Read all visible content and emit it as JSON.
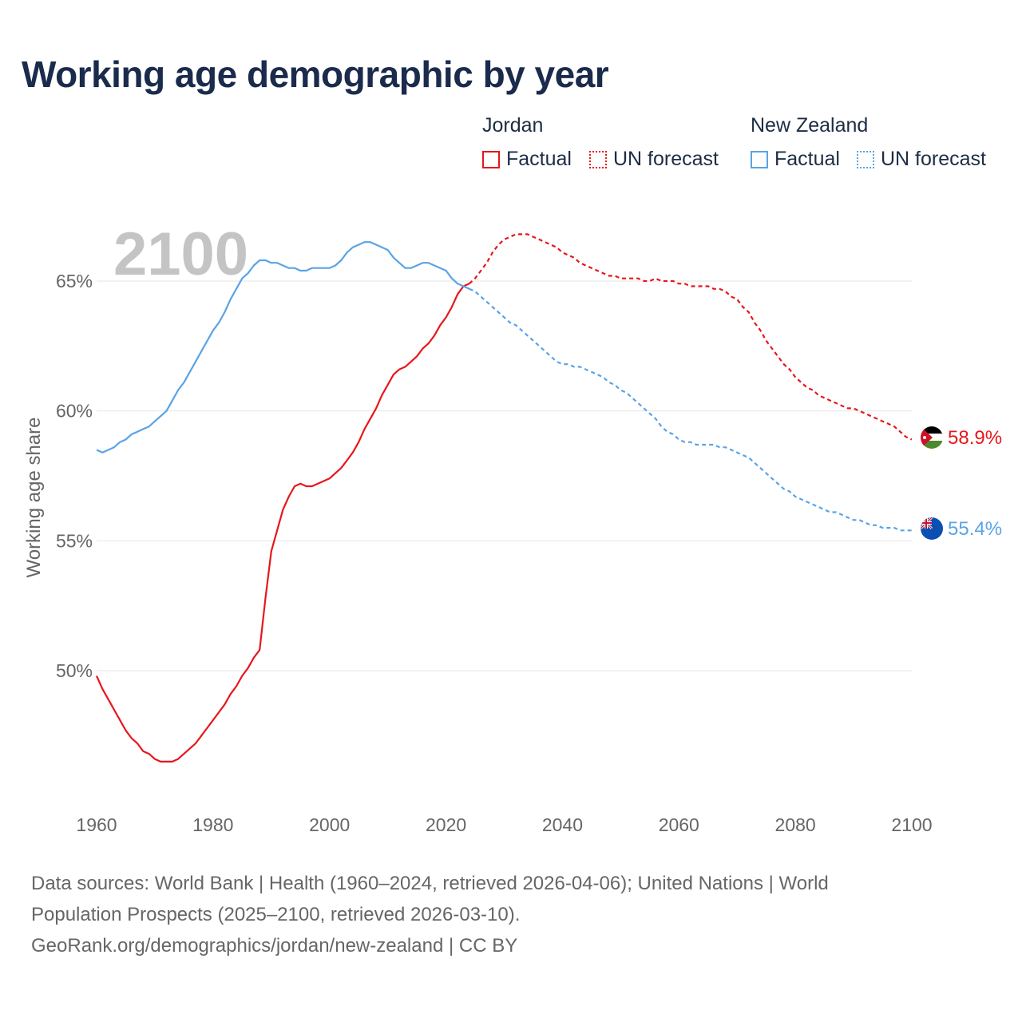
{
  "title": "Working age demographic by year",
  "legend": {
    "groups": [
      {
        "country": "Jordan",
        "factual_label": "Factual",
        "forecast_label": "UN forecast",
        "color": "#e8161b"
      },
      {
        "country": "New Zealand",
        "factual_label": "Factual",
        "forecast_label": "UN forecast",
        "color": "#5aa3e6"
      }
    ]
  },
  "year_watermark": "2100",
  "end_labels": {
    "jordan": "58.9%",
    "new_zealand": "55.4%"
  },
  "footer": {
    "line1": "Data sources: World Bank | Health (1960–2024, retrieved 2026-04-06); United Nations | World",
    "line2": "Population Prospects (2025–2100, retrieved 2026-03-10).",
    "line3": "GeoRank.org/demographics/jordan/new-zealand | CC BY"
  },
  "chart_data": {
    "type": "line",
    "title": "Working age demographic by year",
    "xlabel": "",
    "ylabel": "Working age share",
    "xlim": [
      1960,
      2100
    ],
    "ylim": [
      45,
      68
    ],
    "yticks": [
      50,
      55,
      60,
      65
    ],
    "ytick_labels": [
      "50%",
      "55%",
      "60%",
      "65%"
    ],
    "xticks": [
      1960,
      1980,
      2000,
      2020,
      2040,
      2060,
      2080,
      2100
    ],
    "xtick_labels": [
      "1960",
      "1980",
      "2000",
      "2020",
      "2040",
      "2060",
      "2080",
      "2100"
    ],
    "grid": true,
    "factual_until": 2024,
    "series": [
      {
        "name": "Jordan",
        "color": "#e8161b",
        "points": [
          [
            1960,
            49.8
          ],
          [
            1961,
            49.3
          ],
          [
            1962,
            48.9
          ],
          [
            1963,
            48.5
          ],
          [
            1964,
            48.1
          ],
          [
            1965,
            47.7
          ],
          [
            1966,
            47.4
          ],
          [
            1967,
            47.2
          ],
          [
            1968,
            46.9
          ],
          [
            1969,
            46.8
          ],
          [
            1970,
            46.6
          ],
          [
            1971,
            46.5
          ],
          [
            1972,
            46.5
          ],
          [
            1973,
            46.5
          ],
          [
            1974,
            46.6
          ],
          [
            1975,
            46.8
          ],
          [
            1976,
            47.0
          ],
          [
            1977,
            47.2
          ],
          [
            1978,
            47.5
          ],
          [
            1979,
            47.8
          ],
          [
            1980,
            48.1
          ],
          [
            1981,
            48.4
          ],
          [
            1982,
            48.7
          ],
          [
            1983,
            49.1
          ],
          [
            1984,
            49.4
          ],
          [
            1985,
            49.8
          ],
          [
            1986,
            50.1
          ],
          [
            1987,
            50.5
          ],
          [
            1988,
            50.8
          ],
          [
            1989,
            52.8
          ],
          [
            1990,
            54.6
          ],
          [
            1991,
            55.4
          ],
          [
            1992,
            56.2
          ],
          [
            1993,
            56.7
          ],
          [
            1994,
            57.1
          ],
          [
            1995,
            57.2
          ],
          [
            1996,
            57.1
          ],
          [
            1997,
            57.1
          ],
          [
            1998,
            57.2
          ],
          [
            1999,
            57.3
          ],
          [
            2000,
            57.4
          ],
          [
            2001,
            57.6
          ],
          [
            2002,
            57.8
          ],
          [
            2003,
            58.1
          ],
          [
            2004,
            58.4
          ],
          [
            2005,
            58.8
          ],
          [
            2006,
            59.3
          ],
          [
            2007,
            59.7
          ],
          [
            2008,
            60.1
          ],
          [
            2009,
            60.6
          ],
          [
            2010,
            61.0
          ],
          [
            2011,
            61.4
          ],
          [
            2012,
            61.6
          ],
          [
            2013,
            61.7
          ],
          [
            2014,
            61.9
          ],
          [
            2015,
            62.1
          ],
          [
            2016,
            62.4
          ],
          [
            2017,
            62.6
          ],
          [
            2018,
            62.9
          ],
          [
            2019,
            63.3
          ],
          [
            2020,
            63.6
          ],
          [
            2021,
            64.0
          ],
          [
            2022,
            64.5
          ],
          [
            2023,
            64.8
          ],
          [
            2024,
            64.9
          ],
          [
            2025,
            65.1
          ],
          [
            2026,
            65.4
          ],
          [
            2027,
            65.7
          ],
          [
            2028,
            66.1
          ],
          [
            2029,
            66.4
          ],
          [
            2030,
            66.6
          ],
          [
            2031,
            66.7
          ],
          [
            2032,
            66.8
          ],
          [
            2033,
            66.8
          ],
          [
            2034,
            66.8
          ],
          [
            2035,
            66.7
          ],
          [
            2036,
            66.6
          ],
          [
            2037,
            66.5
          ],
          [
            2038,
            66.4
          ],
          [
            2039,
            66.3
          ],
          [
            2040,
            66.1
          ],
          [
            2041,
            66.0
          ],
          [
            2042,
            65.9
          ],
          [
            2043,
            65.7
          ],
          [
            2044,
            65.6
          ],
          [
            2045,
            65.5
          ],
          [
            2046,
            65.4
          ],
          [
            2047,
            65.3
          ],
          [
            2048,
            65.2
          ],
          [
            2049,
            65.2
          ],
          [
            2050,
            65.1
          ],
          [
            2051,
            65.1
          ],
          [
            2052,
            65.1
          ],
          [
            2053,
            65.1
          ],
          [
            2054,
            65.0
          ],
          [
            2055,
            65.0
          ],
          [
            2056,
            65.1
          ],
          [
            2057,
            65.0
          ],
          [
            2058,
            65.0
          ],
          [
            2059,
            65.0
          ],
          [
            2060,
            64.9
          ],
          [
            2061,
            64.9
          ],
          [
            2062,
            64.8
          ],
          [
            2063,
            64.8
          ],
          [
            2064,
            64.8
          ],
          [
            2065,
            64.8
          ],
          [
            2066,
            64.7
          ],
          [
            2067,
            64.7
          ],
          [
            2068,
            64.6
          ],
          [
            2069,
            64.4
          ],
          [
            2070,
            64.3
          ],
          [
            2071,
            64.0
          ],
          [
            2072,
            63.8
          ],
          [
            2073,
            63.4
          ],
          [
            2074,
            63.1
          ],
          [
            2075,
            62.7
          ],
          [
            2076,
            62.4
          ],
          [
            2077,
            62.1
          ],
          [
            2078,
            61.8
          ],
          [
            2079,
            61.6
          ],
          [
            2080,
            61.3
          ],
          [
            2081,
            61.1
          ],
          [
            2082,
            60.9
          ],
          [
            2083,
            60.8
          ],
          [
            2084,
            60.6
          ],
          [
            2085,
            60.5
          ],
          [
            2086,
            60.4
          ],
          [
            2087,
            60.3
          ],
          [
            2088,
            60.2
          ],
          [
            2089,
            60.1
          ],
          [
            2090,
            60.1
          ],
          [
            2091,
            60.0
          ],
          [
            2092,
            59.9
          ],
          [
            2093,
            59.8
          ],
          [
            2094,
            59.7
          ],
          [
            2095,
            59.6
          ],
          [
            2096,
            59.5
          ],
          [
            2097,
            59.4
          ],
          [
            2098,
            59.2
          ],
          [
            2099,
            59.0
          ],
          [
            2100,
            58.9
          ]
        ]
      },
      {
        "name": "New Zealand",
        "color": "#5aa3e6",
        "points": [
          [
            1960,
            58.5
          ],
          [
            1961,
            58.4
          ],
          [
            1962,
            58.5
          ],
          [
            1963,
            58.6
          ],
          [
            1964,
            58.8
          ],
          [
            1965,
            58.9
          ],
          [
            1966,
            59.1
          ],
          [
            1967,
            59.2
          ],
          [
            1968,
            59.3
          ],
          [
            1969,
            59.4
          ],
          [
            1970,
            59.6
          ],
          [
            1971,
            59.8
          ],
          [
            1972,
            60.0
          ],
          [
            1973,
            60.4
          ],
          [
            1974,
            60.8
          ],
          [
            1975,
            61.1
          ],
          [
            1976,
            61.5
          ],
          [
            1977,
            61.9
          ],
          [
            1978,
            62.3
          ],
          [
            1979,
            62.7
          ],
          [
            1980,
            63.1
          ],
          [
            1981,
            63.4
          ],
          [
            1982,
            63.8
          ],
          [
            1983,
            64.3
          ],
          [
            1984,
            64.7
          ],
          [
            1985,
            65.1
          ],
          [
            1986,
            65.3
          ],
          [
            1987,
            65.6
          ],
          [
            1988,
            65.8
          ],
          [
            1989,
            65.8
          ],
          [
            1990,
            65.7
          ],
          [
            1991,
            65.7
          ],
          [
            1992,
            65.6
          ],
          [
            1993,
            65.5
          ],
          [
            1994,
            65.5
          ],
          [
            1995,
            65.4
          ],
          [
            1996,
            65.4
          ],
          [
            1997,
            65.5
          ],
          [
            1998,
            65.5
          ],
          [
            1999,
            65.5
          ],
          [
            2000,
            65.5
          ],
          [
            2001,
            65.6
          ],
          [
            2002,
            65.8
          ],
          [
            2003,
            66.1
          ],
          [
            2004,
            66.3
          ],
          [
            2005,
            66.4
          ],
          [
            2006,
            66.5
          ],
          [
            2007,
            66.5
          ],
          [
            2008,
            66.4
          ],
          [
            2009,
            66.3
          ],
          [
            2010,
            66.2
          ],
          [
            2011,
            65.9
          ],
          [
            2012,
            65.7
          ],
          [
            2013,
            65.5
          ],
          [
            2014,
            65.5
          ],
          [
            2015,
            65.6
          ],
          [
            2016,
            65.7
          ],
          [
            2017,
            65.7
          ],
          [
            2018,
            65.6
          ],
          [
            2019,
            65.5
          ],
          [
            2020,
            65.4
          ],
          [
            2021,
            65.1
          ],
          [
            2022,
            64.9
          ],
          [
            2023,
            64.8
          ],
          [
            2024,
            64.7
          ],
          [
            2025,
            64.6
          ],
          [
            2026,
            64.4
          ],
          [
            2027,
            64.2
          ],
          [
            2028,
            64.0
          ],
          [
            2029,
            63.8
          ],
          [
            2030,
            63.6
          ],
          [
            2031,
            63.4
          ],
          [
            2032,
            63.3
          ],
          [
            2033,
            63.1
          ],
          [
            2034,
            62.9
          ],
          [
            2035,
            62.7
          ],
          [
            2036,
            62.5
          ],
          [
            2037,
            62.3
          ],
          [
            2038,
            62.1
          ],
          [
            2039,
            61.9
          ],
          [
            2040,
            61.8
          ],
          [
            2041,
            61.8
          ],
          [
            2042,
            61.7
          ],
          [
            2043,
            61.7
          ],
          [
            2044,
            61.6
          ],
          [
            2045,
            61.5
          ],
          [
            2046,
            61.4
          ],
          [
            2047,
            61.3
          ],
          [
            2048,
            61.1
          ],
          [
            2049,
            61.0
          ],
          [
            2050,
            60.8
          ],
          [
            2051,
            60.7
          ],
          [
            2052,
            60.5
          ],
          [
            2053,
            60.3
          ],
          [
            2054,
            60.1
          ],
          [
            2055,
            59.9
          ],
          [
            2056,
            59.7
          ],
          [
            2057,
            59.4
          ],
          [
            2058,
            59.2
          ],
          [
            2059,
            59.1
          ],
          [
            2060,
            58.9
          ],
          [
            2061,
            58.8
          ],
          [
            2062,
            58.8
          ],
          [
            2063,
            58.7
          ],
          [
            2064,
            58.7
          ],
          [
            2065,
            58.7
          ],
          [
            2066,
            58.7
          ],
          [
            2067,
            58.6
          ],
          [
            2068,
            58.6
          ],
          [
            2069,
            58.5
          ],
          [
            2070,
            58.4
          ],
          [
            2071,
            58.3
          ],
          [
            2072,
            58.2
          ],
          [
            2073,
            58.0
          ],
          [
            2074,
            57.8
          ],
          [
            2075,
            57.6
          ],
          [
            2076,
            57.4
          ],
          [
            2077,
            57.2
          ],
          [
            2078,
            57.0
          ],
          [
            2079,
            56.9
          ],
          [
            2080,
            56.7
          ],
          [
            2081,
            56.6
          ],
          [
            2082,
            56.5
          ],
          [
            2083,
            56.4
          ],
          [
            2084,
            56.3
          ],
          [
            2085,
            56.2
          ],
          [
            2086,
            56.1
          ],
          [
            2087,
            56.1
          ],
          [
            2088,
            56.0
          ],
          [
            2089,
            55.9
          ],
          [
            2090,
            55.8
          ],
          [
            2091,
            55.8
          ],
          [
            2092,
            55.7
          ],
          [
            2093,
            55.6
          ],
          [
            2094,
            55.6
          ],
          [
            2095,
            55.5
          ],
          [
            2096,
            55.5
          ],
          [
            2097,
            55.5
          ],
          [
            2098,
            55.4
          ],
          [
            2099,
            55.4
          ],
          [
            2100,
            55.4
          ]
        ]
      }
    ]
  }
}
